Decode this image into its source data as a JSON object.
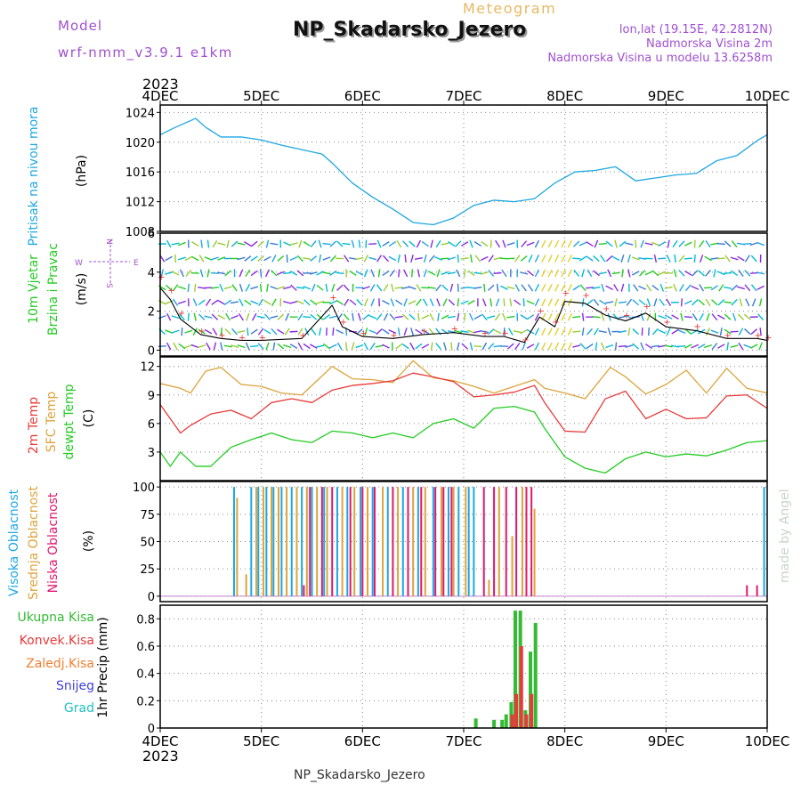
{
  "header": {
    "model_label": "Model",
    "model_name": "wrf-nmm_v3.9.1 e1km",
    "subtitle": "Meteogram",
    "station": "NP_Skadarsko_Jezero",
    "lonlat": "lon,lat (19.15E, 42.2812N)",
    "elevation": "Nadmorska Visina 2m",
    "model_elevation": "Nadmorska Visina u modelu 13.6258m",
    "footer_station": "NP_Skadarsko_Jezero",
    "watermark": "made by Angel"
  },
  "colors": {
    "pressure": "#1ea7e1",
    "temp2m": "#e83a3a",
    "sfc_temp": "#dca43c",
    "dewpoint": "#22cc22",
    "high_cloud": "#1ea7e1",
    "mid_cloud": "#dca43c",
    "low_cloud": "#e0186e",
    "wind_gust": "#e83a3a",
    "wind_speed": "#000000",
    "total_precip": "#33bb33",
    "conv_precip": "#e83a3a",
    "freezing_precip": "#f08030",
    "snow": "#4040e0",
    "hail": "#22c0c0",
    "purple_text": "#a050d0",
    "grid": "#888888"
  },
  "time_axis": {
    "year": "2023",
    "ticks": [
      "4DEC",
      "5DEC",
      "6DEC",
      "7DEC",
      "8DEC",
      "9DEC",
      "10DEC"
    ],
    "x_range_days": [
      0,
      6
    ]
  },
  "panels": {
    "pressure": {
      "ylabel_color": "Pritisak na nivou mora",
      "unit": "(hPa)",
      "yticks": [
        "1008",
        "1012",
        "1016",
        "1020",
        "1024"
      ]
    },
    "wind": {
      "ylabel1": "10m Vjetar",
      "ylabel2": "Brzina i Pravac",
      "unit": "(m/s)",
      "yticks": [
        "0",
        "2",
        "4",
        "6"
      ],
      "compass": [
        "W",
        "E",
        "N",
        "S"
      ]
    },
    "temp": {
      "ylabel1": "2m Temp",
      "ylabel2": "SFC Temp",
      "ylabel3": "dewpt Temp",
      "unit": "(C)",
      "yticks": [
        "3",
        "6",
        "9",
        "12"
      ]
    },
    "cloud": {
      "ylabel1": "Visoka Oblacnost",
      "ylabel2": "Srednja Oblacnost",
      "ylabel3": "Niska Oblacnost",
      "unit": "(%)",
      "yticks": [
        "0",
        "25",
        "50",
        "75",
        "100"
      ]
    },
    "precip": {
      "legend": [
        "Ukupna Kisa",
        "Konvek.Kisa",
        "Zaledj.Kisa",
        "Snijeg",
        "Grad"
      ],
      "unit": "1hr Precip (mm)",
      "yticks": [
        "0",
        "0.2",
        "0.4",
        "0.6",
        "0.8"
      ]
    }
  },
  "chart_data": [
    {
      "type": "line",
      "title": "Pritisak na nivou mora",
      "ylabel": "(hPa)",
      "ylim": [
        1008,
        1025
      ],
      "x_unit": "days since 4DEC 00Z",
      "series": [
        {
          "name": "Pritisak na nivou mora",
          "x": [
            0,
            0.15,
            0.35,
            0.45,
            0.6,
            0.8,
            1.0,
            1.2,
            1.4,
            1.6,
            1.7,
            1.9,
            2.1,
            2.3,
            2.5,
            2.7,
            2.9,
            3.1,
            3.3,
            3.5,
            3.7,
            3.9,
            4.1,
            4.3,
            4.5,
            4.7,
            4.9,
            5.1,
            5.3,
            5.5,
            5.7,
            5.9,
            6.0
          ],
          "values": [
            1021,
            1022,
            1023.2,
            1022,
            1020.7,
            1020.7,
            1020.3,
            1019.6,
            1019,
            1018.4,
            1017.2,
            1014.5,
            1012.6,
            1011,
            1009.2,
            1008.9,
            1009.8,
            1011.5,
            1012.2,
            1012,
            1012.4,
            1014.5,
            1016,
            1016.2,
            1016.7,
            1014.8,
            1015.2,
            1015.6,
            1015.8,
            1017.5,
            1018.2,
            1020.2,
            1021
          ]
        }
      ]
    },
    {
      "type": "line",
      "title": "10m Vjetar Brzina i Pravac",
      "ylabel": "(m/s)",
      "ylim": [
        0,
        6
      ],
      "series": [
        {
          "name": "Brzina",
          "x": [
            0,
            0.1,
            0.2,
            0.4,
            0.6,
            0.8,
            1.0,
            1.4,
            1.7,
            1.8,
            2.0,
            2.3,
            2.6,
            2.9,
            3.2,
            3.4,
            3.6,
            3.75,
            3.9,
            4.0,
            4.2,
            4.4,
            4.6,
            4.8,
            5.0,
            5.3,
            5.6,
            5.9,
            6.0
          ],
          "values": [
            3.2,
            2.6,
            1.6,
            0.8,
            0.6,
            0.5,
            0.5,
            0.6,
            2.3,
            1.2,
            0.7,
            0.6,
            0.8,
            0.9,
            0.7,
            0.7,
            0.4,
            1.7,
            1.2,
            2.5,
            2.4,
            1.8,
            1.5,
            1.9,
            1.2,
            1.0,
            0.6,
            0.6,
            0.5
          ]
        }
      ]
    },
    {
      "type": "line",
      "title": "2m Temp / SFC Temp / dewpt Temp",
      "ylabel": "(C)",
      "ylim": [
        0,
        13
      ],
      "series": [
        {
          "name": "2m Temp",
          "x": [
            0,
            0.1,
            0.2,
            0.3,
            0.5,
            0.7,
            0.9,
            1.1,
            1.3,
            1.5,
            1.7,
            1.9,
            2.1,
            2.3,
            2.5,
            2.7,
            2.9,
            3.1,
            3.3,
            3.5,
            3.7,
            3.8,
            4.0,
            4.2,
            4.4,
            4.6,
            4.8,
            5.0,
            5.2,
            5.4,
            5.6,
            5.8,
            6.0
          ],
          "values": [
            8,
            6.5,
            5,
            5.8,
            7,
            7.4,
            6.5,
            8.2,
            8.6,
            8.2,
            9.5,
            10,
            10.2,
            10.5,
            11.3,
            10.9,
            10.4,
            8.8,
            9,
            9.3,
            10,
            8.2,
            5.2,
            5.1,
            8.6,
            9.4,
            6.5,
            7.5,
            6.5,
            6.6,
            8.9,
            9,
            7.6
          ]
        },
        {
          "name": "SFC Temp",
          "x": [
            0,
            0.2,
            0.3,
            0.45,
            0.6,
            0.8,
            1.0,
            1.2,
            1.4,
            1.55,
            1.7,
            1.9,
            2.1,
            2.3,
            2.5,
            2.7,
            2.9,
            3.1,
            3.3,
            3.5,
            3.7,
            3.8,
            4.0,
            4.2,
            4.45,
            4.6,
            4.8,
            5.0,
            5.2,
            5.4,
            5.6,
            5.8,
            6.0
          ],
          "values": [
            10.2,
            9.7,
            9.2,
            11.5,
            11.9,
            10.1,
            9.9,
            9.2,
            9.0,
            10.5,
            12,
            10.7,
            10.6,
            10.3,
            12.6,
            10.8,
            10.5,
            9.9,
            9.2,
            9.9,
            10.6,
            9.7,
            9.2,
            8.6,
            11.9,
            10.9,
            9.1,
            10.1,
            11.6,
            9.2,
            11.8,
            9.7,
            9.2
          ]
        },
        {
          "name": "dewpt Temp",
          "x": [
            0,
            0.1,
            0.2,
            0.35,
            0.5,
            0.7,
            0.9,
            1.1,
            1.3,
            1.5,
            1.7,
            1.9,
            2.1,
            2.3,
            2.5,
            2.7,
            2.9,
            3.1,
            3.3,
            3.5,
            3.7,
            3.8,
            4.0,
            4.2,
            4.4,
            4.6,
            4.8,
            5.0,
            5.2,
            5.4,
            5.6,
            5.8,
            6.0
          ],
          "values": [
            3,
            1.5,
            3,
            1.5,
            1.5,
            3.5,
            4.3,
            5,
            4.3,
            4,
            5.2,
            5,
            4.5,
            5,
            4.5,
            6,
            6.5,
            5.5,
            7.6,
            7.8,
            7.2,
            5.5,
            2.5,
            1.3,
            0.8,
            2.3,
            3,
            2.5,
            2.8,
            2.6,
            3.2,
            4,
            4.2
          ]
        }
      ]
    },
    {
      "type": "bar",
      "title": "Oblacnost",
      "ylabel": "(%)",
      "ylim": [
        0,
        100
      ],
      "series": [
        {
          "name": "Visoka Oblacnost",
          "x": [
            0.73,
            0.9,
            0.97,
            1.05,
            1.12,
            1.2,
            1.3,
            1.4,
            1.5,
            1.62,
            1.75,
            1.85,
            1.98,
            2.1,
            2.25,
            2.4,
            2.55,
            2.7,
            2.85,
            2.95,
            3.05,
            3.1,
            5.97
          ],
          "values": [
            100,
            100,
            100,
            100,
            100,
            100,
            100,
            100,
            100,
            100,
            100,
            100,
            100,
            100,
            100,
            100,
            100,
            100,
            100,
            100,
            100,
            100,
            100
          ]
        },
        {
          "name": "Srednja Oblacnost",
          "x": [
            0.76,
            0.85,
            0.95,
            1.02,
            1.1,
            1.17,
            1.25,
            1.35,
            1.45,
            1.55,
            1.65,
            1.8,
            1.92,
            2.05,
            2.2,
            2.35,
            2.5,
            2.62,
            2.78,
            2.9,
            3.02,
            3.25,
            3.35,
            3.48,
            3.58,
            3.7
          ],
          "values": [
            90,
            20,
            100,
            100,
            100,
            100,
            100,
            100,
            100,
            100,
            100,
            100,
            100,
            100,
            100,
            100,
            100,
            100,
            100,
            100,
            100,
            15,
            100,
            55,
            100,
            80
          ]
        },
        {
          "name": "Niska Oblacnost",
          "x": [
            1.42,
            1.48,
            1.6,
            1.7,
            1.88,
            2.0,
            2.12,
            2.3,
            2.45,
            2.58,
            2.72,
            2.8,
            2.88,
            3.2,
            3.3,
            3.42,
            3.52,
            3.62,
            3.67,
            5.8,
            5.9
          ],
          "values": [
            10,
            100,
            100,
            100,
            100,
            100,
            100,
            100,
            100,
            100,
            100,
            100,
            100,
            100,
            100,
            100,
            100,
            100,
            100,
            10,
            10
          ]
        }
      ]
    },
    {
      "type": "bar",
      "title": "1hr Precip",
      "ylabel": "1hr Precip (mm)",
      "ylim": [
        0,
        0.9
      ],
      "series": [
        {
          "name": "Ukupna Kisa",
          "x": [
            3.12,
            3.3,
            3.38,
            3.42,
            3.47,
            3.51,
            3.56,
            3.61,
            3.66,
            3.71
          ],
          "values": [
            0.07,
            0.06,
            0.06,
            0.1,
            0.19,
            0.86,
            0.86,
            0.13,
            0.56,
            0.77
          ]
        },
        {
          "name": "Konvek.Kisa",
          "x": [
            3.48,
            3.52,
            3.57,
            3.62,
            3.67
          ],
          "values": [
            0.1,
            0.25,
            0.6,
            0.1,
            0.25
          ]
        }
      ]
    }
  ]
}
